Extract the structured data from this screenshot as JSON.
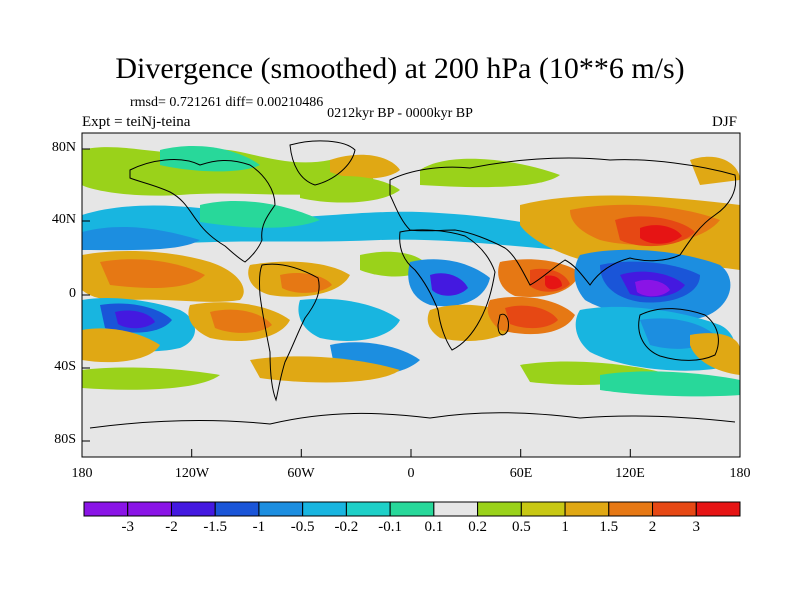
{
  "title": "Divergence (smoothed) at 200 hPa (10**6 m/s)",
  "stats": "rmsd= 0.721261 diff= 0.00210486",
  "period": "0212kyr BP - 0000kyr BP",
  "experiment": "Expt = teiNj-teina",
  "season": "DJF",
  "axes": {
    "y_ticks": [
      "80N",
      "40N",
      "0",
      "40S",
      "80S"
    ],
    "x_ticks": [
      "180",
      "120W",
      "60W",
      "0",
      "60E",
      "120E",
      "180"
    ]
  },
  "colorbar": {
    "labels": [
      "-3",
      "-2",
      "-1.5",
      "-1",
      "-0.5",
      "-0.2",
      "-0.1",
      "0.1",
      "0.2",
      "0.5",
      "1",
      "1.5",
      "2",
      "3"
    ],
    "colors": [
      "#8a14e6",
      "#4419e0",
      "#1a55d8",
      "#1c8ee0",
      "#18b5e0",
      "#1ed0c8",
      "#28d89a",
      "#e6e6e6",
      "#9ad21a",
      "#c8c814",
      "#e0a814",
      "#e67814",
      "#e64814",
      "#e61414"
    ]
  },
  "chart_data": {
    "type": "heatmap",
    "variable": "Divergence (smoothed) at 200 hPa",
    "units": "10**6 m/s",
    "lon_range": [
      -180,
      180
    ],
    "lat_range": [
      -90,
      90
    ],
    "levels": [
      -3,
      -2,
      -1.5,
      -1,
      -0.5,
      -0.2,
      -0.1,
      0.1,
      0.2,
      0.5,
      1,
      1.5,
      2,
      3
    ]
  }
}
